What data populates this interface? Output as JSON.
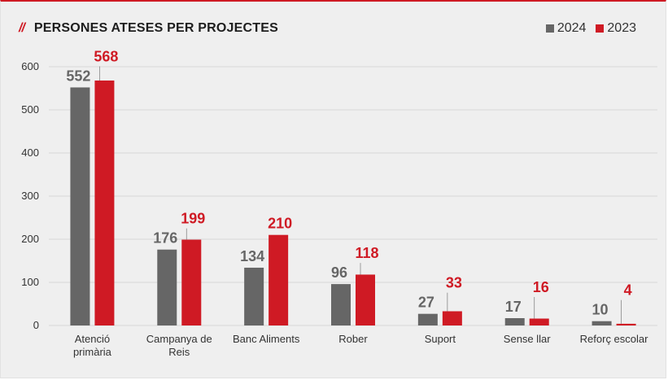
{
  "header": {
    "slashes": "//",
    "title": "PERSONES ATESES PER PROJECTES"
  },
  "colors": {
    "series_2024": "#666666",
    "series_2023": "#cf1a24",
    "accent": "#cf1a24"
  },
  "chart_data": {
    "type": "bar",
    "title": "PERSONES ATESES PER PROJECTES",
    "categories": [
      [
        "Atenció",
        "primària"
      ],
      [
        "Campanya de",
        "Reis"
      ],
      [
        "Banc Aliments"
      ],
      [
        "Rober"
      ],
      [
        "Suport"
      ],
      [
        "Sense llar"
      ],
      [
        "Reforç escolar"
      ]
    ],
    "series": [
      {
        "name": "2024",
        "values": [
          552,
          176,
          134,
          96,
          27,
          17,
          10
        ]
      },
      {
        "name": "2023",
        "values": [
          568,
          199,
          210,
          118,
          33,
          16,
          4
        ]
      }
    ],
    "ylim": [
      0,
      600
    ],
    "yticks": [
      0,
      100,
      200,
      300,
      400,
      500,
      600
    ],
    "grid": true,
    "legend_position": "top-right"
  }
}
